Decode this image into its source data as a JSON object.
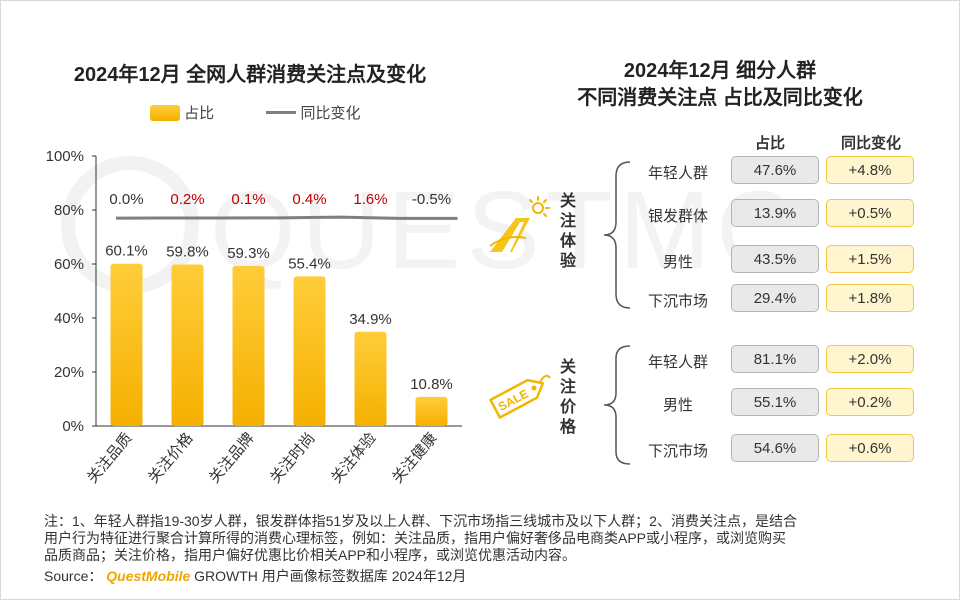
{
  "left_title": "2024年12月 全网人群消费关注点及变化",
  "right_title_line1": "2024年12月 细分人群",
  "right_title_line2": "不同消费关注点 占比及同比变化",
  "legend": {
    "bar_label": "占比",
    "line_label": "同比变化"
  },
  "chart_data": {
    "type": "bar",
    "categories": [
      "关注品质",
      "关注价格",
      "关注品牌",
      "关注时尚",
      "关注体验",
      "关注健康"
    ],
    "series": [
      {
        "name": "占比",
        "values": [
          60.1,
          59.8,
          59.3,
          55.4,
          34.9,
          10.8
        ],
        "labels": [
          "60.1%",
          "59.8%",
          "59.3%",
          "55.4%",
          "34.9%",
          "10.8%"
        ]
      },
      {
        "name": "同比变化",
        "values": [
          0.0,
          0.2,
          0.1,
          0.4,
          1.6,
          -0.5
        ],
        "labels": [
          "0.0%",
          "0.2%",
          "0.1%",
          "0.4%",
          "1.6%",
          "-0.5%"
        ]
      }
    ],
    "yticks": [
      "0%",
      "20%",
      "40%",
      "60%",
      "80%",
      "100%"
    ],
    "ylim": [
      0,
      100
    ],
    "grid": false,
    "legend_position": "top"
  },
  "colors": {
    "bar_top": "#ffcd3a",
    "bar_bottom": "#f5b000",
    "line": "#7f7f7f",
    "positive_change": "#c00000",
    "neutral_change": "#333333"
  },
  "table": {
    "headers": {
      "share": "占比",
      "yoy": "同比变化"
    },
    "groups": [
      {
        "name_chars": [
          "关",
          "注",
          "体",
          "验"
        ],
        "icon": "road-sun-icon",
        "rows": [
          {
            "label": "年轻人群",
            "share": "47.6%",
            "yoy": "+4.8%"
          },
          {
            "label": "银发群体",
            "share": "13.9%",
            "yoy": "+0.5%"
          },
          {
            "label": "男性",
            "share": "43.5%",
            "yoy": "+1.5%"
          },
          {
            "label": "下沉市场",
            "share": "29.4%",
            "yoy": "+1.8%"
          }
        ]
      },
      {
        "name_chars": [
          "关",
          "注",
          "价",
          "格"
        ],
        "icon": "sale-tag-icon",
        "icon_text": "SALE",
        "rows": [
          {
            "label": "年轻人群",
            "share": "81.1%",
            "yoy": "+2.0%"
          },
          {
            "label": "男性",
            "share": "55.1%",
            "yoy": "+0.2%"
          },
          {
            "label": "下沉市场",
            "share": "54.6%",
            "yoy": "+0.6%"
          }
        ]
      }
    ]
  },
  "notes": {
    "line1": "注：1、年轻人群指19-30岁人群，银发群体指51岁及以上人群、下沉市场指三线城市及以下人群；2、消费关注点，是结合",
    "line2": "用户行为特征进行聚合计算所得的消费心理标签，例如：关注品质，指用户偏好奢侈品电商类APP或小程序，或浏览购买",
    "line3": "品质商品；关注价格，指用户偏好优惠比价相关APP和小程序，或浏览优惠活动内容。"
  },
  "source": {
    "prefix": "Source：",
    "brand": "QuestMobile",
    "rest": "GROWTH 用户画像标签数据库 2024年12月"
  },
  "watermark": "QUESTMOBILE"
}
